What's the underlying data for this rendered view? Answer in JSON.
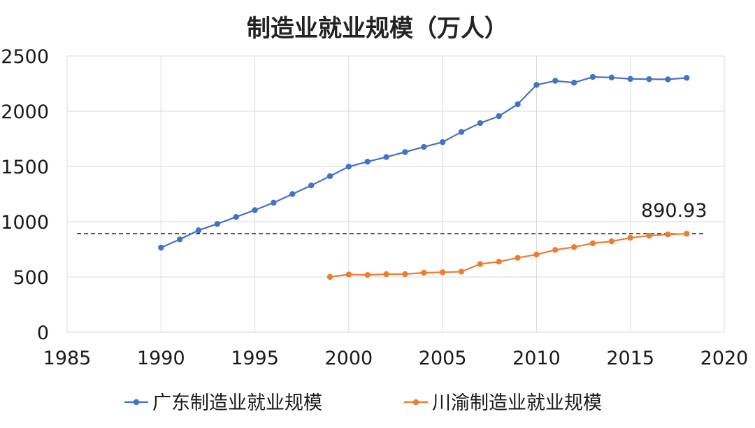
{
  "chart_data": {
    "type": "line",
    "title": "制造业就业规模（万人）",
    "xlabel": "",
    "ylabel": "",
    "xlim": [
      1985,
      2020
    ],
    "ylim": [
      0,
      2500
    ],
    "x_ticks": [
      "1985",
      "1990",
      "1995",
      "2000",
      "2005",
      "2010",
      "2015",
      "2020"
    ],
    "y_ticks": [
      "0",
      "500",
      "1000",
      "1500",
      "2000",
      "2500"
    ],
    "grid": "vertical and horizontal",
    "legend_position": "bottom",
    "series": [
      {
        "name": "广东制造业就业规模",
        "color": "#4472c4",
        "points": [
          [
            1990,
            765
          ],
          [
            1991,
            840
          ],
          [
            1992,
            922
          ],
          [
            1993,
            980
          ],
          [
            1994,
            1043
          ],
          [
            1995,
            1105
          ],
          [
            1996,
            1172
          ],
          [
            1997,
            1250
          ],
          [
            1998,
            1328
          ],
          [
            1999,
            1412
          ],
          [
            2000,
            1498
          ],
          [
            2001,
            1543
          ],
          [
            2002,
            1585
          ],
          [
            2003,
            1630
          ],
          [
            2004,
            1677
          ],
          [
            2005,
            1720
          ],
          [
            2006,
            1812
          ],
          [
            2007,
            1892
          ],
          [
            2008,
            1955
          ],
          [
            2009,
            2063
          ],
          [
            2010,
            2238
          ],
          [
            2011,
            2275
          ],
          [
            2012,
            2258
          ],
          [
            2013,
            2310
          ],
          [
            2014,
            2305
          ],
          [
            2015,
            2292
          ],
          [
            2016,
            2290
          ],
          [
            2017,
            2288
          ],
          [
            2018,
            2302
          ]
        ]
      },
      {
        "name": "川渝制造业就业规模",
        "color": "#ed7d31",
        "points": [
          [
            1999,
            500
          ],
          [
            2000,
            522
          ],
          [
            2001,
            518
          ],
          [
            2002,
            525
          ],
          [
            2003,
            526
          ],
          [
            2004,
            538
          ],
          [
            2005,
            542
          ],
          [
            2006,
            548
          ],
          [
            2007,
            617
          ],
          [
            2008,
            638
          ],
          [
            2009,
            673
          ],
          [
            2010,
            703
          ],
          [
            2011,
            745
          ],
          [
            2012,
            770
          ],
          [
            2013,
            805
          ],
          [
            2014,
            822
          ],
          [
            2015,
            855
          ],
          [
            2016,
            873
          ],
          [
            2017,
            885
          ],
          [
            2018,
            890.93
          ]
        ]
      }
    ],
    "reference_line": {
      "y": 890.93,
      "style": "dashed",
      "color": "#000000"
    },
    "annotation": {
      "text": "890.93",
      "x": 2018,
      "y": 890.93
    }
  }
}
